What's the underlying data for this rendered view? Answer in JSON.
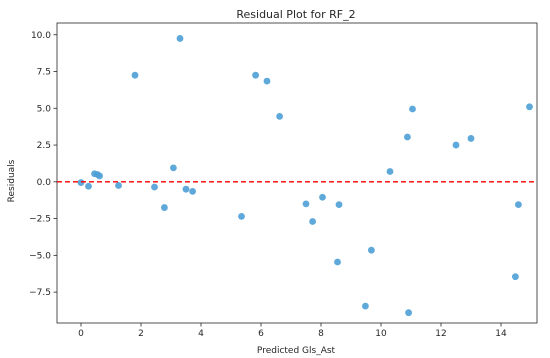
{
  "chart_data": {
    "type": "scatter",
    "title": "Residual Plot for RF_2",
    "xlabel": "Predicted Gls_Ast",
    "ylabel": "Residuals",
    "xlim": [
      -0.8,
      15.2
    ],
    "ylim": [
      -9.6,
      10.8
    ],
    "x_ticks": [
      0,
      2,
      4,
      6,
      8,
      10,
      12,
      14
    ],
    "y_ticks": [
      -7.5,
      -5.0,
      -2.5,
      0.0,
      2.5,
      5.0,
      7.5,
      10.0
    ],
    "x_tick_labels": [
      "0",
      "2",
      "4",
      "6",
      "8",
      "10",
      "12",
      "14"
    ],
    "y_tick_labels": [
      "−7.5",
      "−5.0",
      "−2.5",
      "0.0",
      "2.5",
      "5.0",
      "7.5",
      "10.0"
    ],
    "grid": false,
    "reference_line": {
      "y": 0,
      "style": "dashed",
      "color": "#ff0000"
    },
    "point_color": "#4c9ed6",
    "points": [
      {
        "x": 0.0,
        "y": -0.05
      },
      {
        "x": 0.25,
        "y": -0.3
      },
      {
        "x": 0.45,
        "y": 0.55
      },
      {
        "x": 0.55,
        "y": 0.5
      },
      {
        "x": 0.62,
        "y": 0.4
      },
      {
        "x": 1.25,
        "y": -0.25
      },
      {
        "x": 1.8,
        "y": 7.25
      },
      {
        "x": 2.45,
        "y": -0.35
      },
      {
        "x": 2.78,
        "y": -1.75
      },
      {
        "x": 3.08,
        "y": 0.95
      },
      {
        "x": 3.3,
        "y": 9.75
      },
      {
        "x": 3.5,
        "y": -0.5
      },
      {
        "x": 3.72,
        "y": -0.65
      },
      {
        "x": 5.35,
        "y": -2.35
      },
      {
        "x": 5.82,
        "y": 7.25
      },
      {
        "x": 6.2,
        "y": 6.85
      },
      {
        "x": 6.62,
        "y": 4.45
      },
      {
        "x": 7.5,
        "y": -1.5
      },
      {
        "x": 7.72,
        "y": -2.7
      },
      {
        "x": 8.05,
        "y": -1.05
      },
      {
        "x": 8.55,
        "y": -5.45
      },
      {
        "x": 8.6,
        "y": -1.55
      },
      {
        "x": 9.48,
        "y": -8.45
      },
      {
        "x": 9.68,
        "y": -4.65
      },
      {
        "x": 10.3,
        "y": 0.7
      },
      {
        "x": 10.88,
        "y": 3.05
      },
      {
        "x": 10.92,
        "y": -8.9
      },
      {
        "x": 11.05,
        "y": 4.95
      },
      {
        "x": 12.5,
        "y": 2.5
      },
      {
        "x": 13.0,
        "y": 2.95
      },
      {
        "x": 14.48,
        "y": -6.45
      },
      {
        "x": 14.58,
        "y": -1.55
      },
      {
        "x": 14.95,
        "y": 5.1
      }
    ]
  }
}
